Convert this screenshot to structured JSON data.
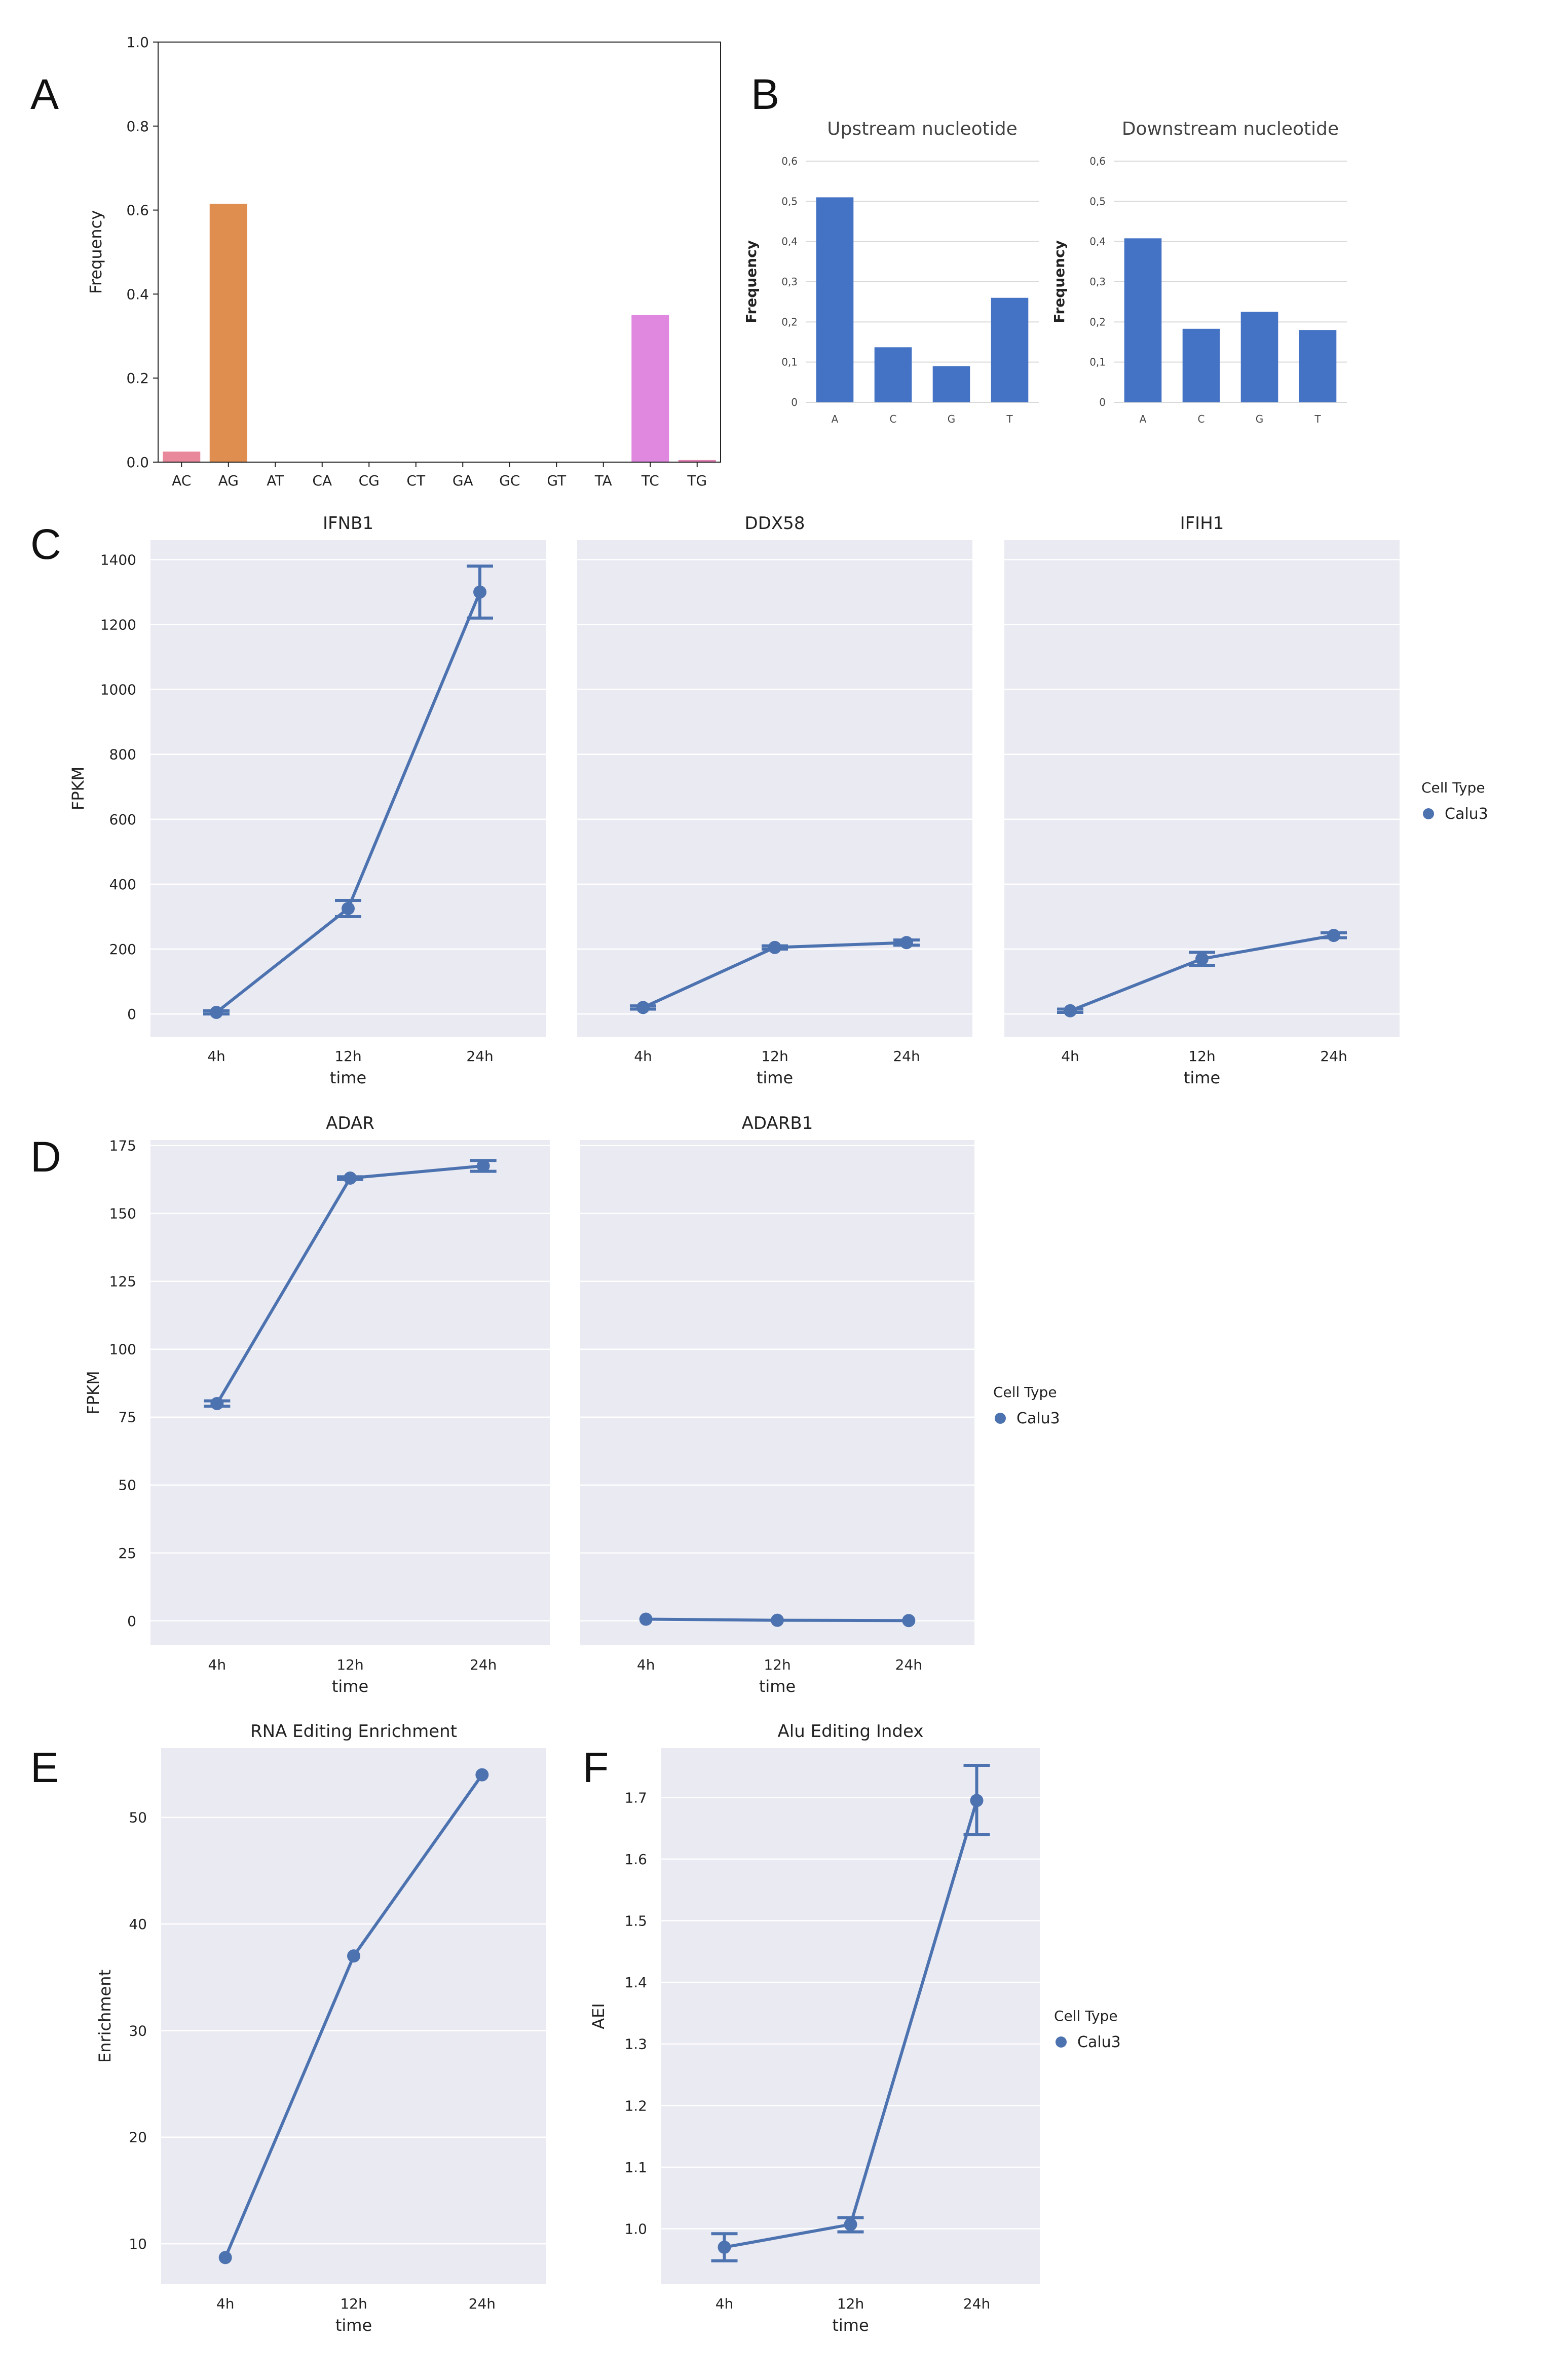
{
  "colors": {
    "seaborn_bg": "#eaeaf2",
    "grid": "#ffffff",
    "line": "#4c72b0",
    "bar_blue": "#4472c4"
  },
  "chart_data": [
    {
      "id": "A",
      "panel_label": "A",
      "type": "bar",
      "title": "",
      "xlabel": "",
      "ylabel": "Frequency",
      "ylim": [
        0,
        1.0
      ],
      "yticks": [
        "0.0",
        "0.2",
        "0.4",
        "0.6",
        "0.8",
        "1.0"
      ],
      "categories": [
        "AC",
        "AG",
        "AT",
        "CA",
        "CG",
        "CT",
        "GA",
        "GC",
        "GT",
        "TA",
        "TC",
        "TG"
      ],
      "values": [
        0.025,
        0.615,
        0,
        0,
        0,
        0,
        0,
        0,
        0,
        0,
        0.35,
        0.005
      ],
      "bar_colors": [
        "#e8889a",
        "#e08e50",
        "#c8a040",
        "#a0b040",
        "#60b050",
        "#50b090",
        "#50b0b0",
        "#50a0d0",
        "#8090e0",
        "#c080e0",
        "#e088e0",
        "#e080b0"
      ]
    },
    {
      "id": "B1",
      "panel_label": "B",
      "type": "bar",
      "title": "Upstream nucleotide",
      "ylabel": "Frequency",
      "ylim": [
        0,
        0.6
      ],
      "yticks": [
        "0",
        "0,1",
        "0,2",
        "0,3",
        "0,4",
        "0,5",
        "0,6"
      ],
      "categories": [
        "A",
        "C",
        "G",
        "T"
      ],
      "values": [
        0.51,
        0.137,
        0.09,
        0.26
      ]
    },
    {
      "id": "B2",
      "type": "bar",
      "title": "Downstream nucleotide",
      "ylabel": "Frequency",
      "ylim": [
        0,
        0.6
      ],
      "yticks": [
        "0",
        "0,1",
        "0,2",
        "0,3",
        "0,4",
        "0,5",
        "0,6"
      ],
      "categories": [
        "A",
        "C",
        "G",
        "T"
      ],
      "values": [
        0.408,
        0.183,
        0.225,
        0.18
      ]
    },
    {
      "id": "C1",
      "panel_label": "C",
      "type": "line",
      "title": "IFNB1",
      "xlabel": "time",
      "ylabel": "FPKM",
      "categories": [
        "4h",
        "12h",
        "24h"
      ],
      "ylim": [
        -70,
        1460
      ],
      "yticks": [
        0,
        200,
        400,
        600,
        800,
        1000,
        1200,
        1400
      ],
      "values": [
        5,
        325,
        1300
      ],
      "err_low": [
        0,
        300,
        1220
      ],
      "err_high": [
        10,
        350,
        1380
      ]
    },
    {
      "id": "C2",
      "type": "line",
      "title": "DDX58",
      "xlabel": "time",
      "categories": [
        "4h",
        "12h",
        "24h"
      ],
      "ylim": [
        -70,
        1460
      ],
      "values": [
        20,
        205,
        220
      ],
      "err_low": [
        15,
        200,
        212
      ],
      "err_high": [
        25,
        210,
        228
      ]
    },
    {
      "id": "C3",
      "type": "line",
      "title": "IFIH1",
      "xlabel": "time",
      "categories": [
        "4h",
        "12h",
        "24h"
      ],
      "ylim": [
        -70,
        1460
      ],
      "values": [
        10,
        170,
        242
      ],
      "err_low": [
        5,
        150,
        235
      ],
      "err_high": [
        15,
        190,
        250
      ]
    },
    {
      "id": "D1",
      "panel_label": "D",
      "type": "line",
      "title": "ADAR",
      "xlabel": "time",
      "ylabel": "FPKM",
      "categories": [
        "4h",
        "12h",
        "24h"
      ],
      "ylim": [
        -9,
        177
      ],
      "yticks": [
        0,
        25,
        50,
        75,
        100,
        125,
        150,
        175
      ],
      "values": [
        80,
        163,
        167.5
      ],
      "err_low": [
        79,
        162.5,
        165.5
      ],
      "err_high": [
        81,
        163.5,
        169.5
      ]
    },
    {
      "id": "D2",
      "type": "line",
      "title": "ADARB1",
      "xlabel": "time",
      "categories": [
        "4h",
        "12h",
        "24h"
      ],
      "ylim": [
        -9,
        177
      ],
      "values": [
        0.6,
        0.2,
        0.1
      ],
      "err_low": [
        0.6,
        0.2,
        0.1
      ],
      "err_high": [
        0.6,
        0.2,
        0.1
      ]
    },
    {
      "id": "E",
      "panel_label": "E",
      "type": "line",
      "title": "RNA Editing Enrichment",
      "xlabel": "time",
      "ylabel": "Enrichment",
      "categories": [
        "4h",
        "12h",
        "24h"
      ],
      "ylim": [
        6.2,
        56.5
      ],
      "yticks": [
        10,
        20,
        30,
        40,
        50
      ],
      "values": [
        8.7,
        37,
        54
      ],
      "err_low": [
        8.7,
        37,
        54
      ],
      "err_high": [
        8.7,
        37,
        54
      ]
    },
    {
      "id": "F",
      "panel_label": "F",
      "type": "line",
      "title": "Alu Editing Index",
      "xlabel": "time",
      "ylabel": "AEI",
      "categories": [
        "4h",
        "12h",
        "24h"
      ],
      "ylim": [
        0.91,
        1.78
      ],
      "yticks": [
        "1.0",
        "1.1",
        "1.2",
        "1.3",
        "1.4",
        "1.5",
        "1.6",
        "1.7"
      ],
      "values": [
        0.97,
        1.007,
        1.695
      ],
      "err_low": [
        0.948,
        0.995,
        1.64
      ],
      "err_high": [
        0.992,
        1.018,
        1.752
      ]
    }
  ],
  "legends": [
    {
      "title": "Cell Type",
      "item": "Calu3"
    },
    {
      "title": "Cell Type",
      "item": "Calu3"
    },
    {
      "title": "Cell Type",
      "item": "Calu3"
    }
  ]
}
